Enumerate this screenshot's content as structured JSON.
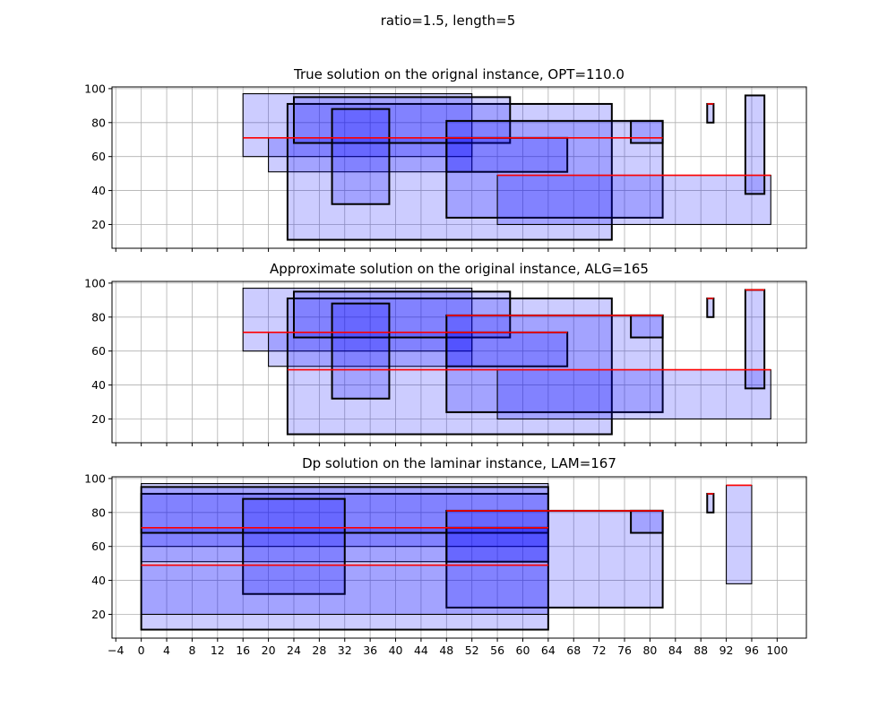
{
  "suptitle": "ratio=1.5, length=5",
  "colors": {
    "fill": "#0000ff",
    "edge": "#000000",
    "top_line": "#ff0000",
    "grid": "#b0b0b0"
  },
  "chart_data": [
    {
      "type": "rectangles",
      "title": "True solution on the orignal instance, OPT=110.0",
      "xlim": [
        -4.6,
        104.6
      ],
      "ylim": [
        6,
        101
      ],
      "xticks": [
        -4,
        0,
        4,
        8,
        12,
        16,
        20,
        24,
        28,
        32,
        36,
        40,
        44,
        48,
        52,
        56,
        60,
        64,
        68,
        72,
        76,
        80,
        84,
        88,
        92,
        96,
        100
      ],
      "yticks": [
        20,
        40,
        60,
        80,
        100
      ],
      "show_xtick_labels": false,
      "grid": true,
      "rects": [
        {
          "x0": 16,
          "x1": 52,
          "y0": 60,
          "y1": 97,
          "thick": false,
          "red_top": false
        },
        {
          "x0": 20,
          "x1": 52,
          "y0": 51,
          "y1": 71,
          "thick": false,
          "red_top": false
        },
        {
          "x0": 23,
          "x1": 74,
          "y0": 11,
          "y1": 91,
          "thick": true,
          "red_top": false
        },
        {
          "x0": 24,
          "x1": 58,
          "y0": 68,
          "y1": 95,
          "thick": true,
          "red_top": false
        },
        {
          "x0": 30,
          "x1": 39,
          "y0": 32,
          "y1": 88,
          "thick": true,
          "red_top": false
        },
        {
          "x0": 48,
          "x1": 67,
          "y0": 51,
          "y1": 71,
          "thick": true,
          "red_top": false
        },
        {
          "x0": 48,
          "x1": 82,
          "y0": 24,
          "y1": 81,
          "thick": true,
          "red_top": false
        },
        {
          "x0": 77,
          "x1": 82,
          "y0": 68,
          "y1": 81,
          "thick": true,
          "red_top": false
        },
        {
          "x0": 56,
          "x1": 99,
          "y0": 20,
          "y1": 49,
          "thick": false,
          "red_top": false
        },
        {
          "x0": 89,
          "x1": 90,
          "y0": 80,
          "y1": 91,
          "thick": true,
          "red_top": false
        },
        {
          "x0": 95,
          "x1": 98,
          "y0": 38,
          "y1": 96,
          "thick": true,
          "red_top": false
        }
      ],
      "red_lines": [
        {
          "x0": 16,
          "x1": 82,
          "y": 71
        },
        {
          "x0": 56,
          "x1": 99,
          "y": 49
        },
        {
          "x0": 89,
          "x1": 90,
          "y": 91
        }
      ]
    },
    {
      "type": "rectangles",
      "title": "Approximate solution on the original instance, ALG=165",
      "xlim": [
        -4.6,
        104.6
      ],
      "ylim": [
        6,
        101
      ],
      "xticks": [
        -4,
        0,
        4,
        8,
        12,
        16,
        20,
        24,
        28,
        32,
        36,
        40,
        44,
        48,
        52,
        56,
        60,
        64,
        68,
        72,
        76,
        80,
        84,
        88,
        92,
        96,
        100
      ],
      "yticks": [
        20,
        40,
        60,
        80,
        100
      ],
      "show_xtick_labels": false,
      "grid": true,
      "rects": [
        {
          "x0": 16,
          "x1": 52,
          "y0": 60,
          "y1": 97,
          "thick": false,
          "red_top": false
        },
        {
          "x0": 20,
          "x1": 52,
          "y0": 51,
          "y1": 71,
          "thick": false,
          "red_top": false
        },
        {
          "x0": 23,
          "x1": 74,
          "y0": 11,
          "y1": 91,
          "thick": true,
          "red_top": false
        },
        {
          "x0": 24,
          "x1": 58,
          "y0": 68,
          "y1": 95,
          "thick": true,
          "red_top": false
        },
        {
          "x0": 30,
          "x1": 39,
          "y0": 32,
          "y1": 88,
          "thick": true,
          "red_top": false
        },
        {
          "x0": 48,
          "x1": 67,
          "y0": 51,
          "y1": 71,
          "thick": true,
          "red_top": false
        },
        {
          "x0": 48,
          "x1": 82,
          "y0": 24,
          "y1": 81,
          "thick": true,
          "red_top": false
        },
        {
          "x0": 77,
          "x1": 82,
          "y0": 68,
          "y1": 81,
          "thick": true,
          "red_top": false
        },
        {
          "x0": 56,
          "x1": 99,
          "y0": 20,
          "y1": 49,
          "thick": false,
          "red_top": false
        },
        {
          "x0": 89,
          "x1": 90,
          "y0": 80,
          "y1": 91,
          "thick": true,
          "red_top": false
        },
        {
          "x0": 95,
          "x1": 98,
          "y0": 38,
          "y1": 96,
          "thick": true,
          "red_top": false
        }
      ],
      "red_lines": [
        {
          "x0": 16,
          "x1": 67,
          "y": 71
        },
        {
          "x0": 48,
          "x1": 82,
          "y": 81
        },
        {
          "x0": 23,
          "x1": 99,
          "y": 49
        },
        {
          "x0": 89,
          "x1": 90,
          "y": 91
        },
        {
          "x0": 95,
          "x1": 98,
          "y": 96
        }
      ]
    },
    {
      "type": "rectangles",
      "title": "Dp solution on the laminar instance, LAM=167",
      "xlim": [
        -4.6,
        104.6
      ],
      "ylim": [
        6,
        101
      ],
      "xticks": [
        -4,
        0,
        4,
        8,
        12,
        16,
        20,
        24,
        28,
        32,
        36,
        40,
        44,
        48,
        52,
        56,
        60,
        64,
        68,
        72,
        76,
        80,
        84,
        88,
        92,
        96,
        100
      ],
      "xtick_labels": [
        "−4",
        "0",
        "4",
        "8",
        "12",
        "16",
        "20",
        "24",
        "28",
        "32",
        "36",
        "40",
        "44",
        "48",
        "52",
        "56",
        "60",
        "64",
        "68",
        "72",
        "76",
        "80",
        "84",
        "88",
        "92",
        "96",
        "100"
      ],
      "yticks": [
        20,
        40,
        60,
        80,
        100
      ],
      "show_xtick_labels": true,
      "grid": true,
      "rects": [
        {
          "x0": 0,
          "x1": 64,
          "y0": 60,
          "y1": 97,
          "thick": false,
          "red_top": false
        },
        {
          "x0": 0,
          "x1": 64,
          "y0": 51,
          "y1": 71,
          "thick": false,
          "red_top": false
        },
        {
          "x0": 0,
          "x1": 64,
          "y0": 11,
          "y1": 91,
          "thick": true,
          "red_top": false
        },
        {
          "x0": 0,
          "x1": 64,
          "y0": 68,
          "y1": 95,
          "thick": true,
          "red_top": false
        },
        {
          "x0": 16,
          "x1": 32,
          "y0": 32,
          "y1": 88,
          "thick": true,
          "red_top": false
        },
        {
          "x0": 48,
          "x1": 64,
          "y0": 51,
          "y1": 71,
          "thick": true,
          "red_top": false
        },
        {
          "x0": 48,
          "x1": 82,
          "y0": 24,
          "y1": 81,
          "thick": true,
          "red_top": false
        },
        {
          "x0": 77,
          "x1": 82,
          "y0": 68,
          "y1": 81,
          "thick": true,
          "red_top": false
        },
        {
          "x0": 0,
          "x1": 64,
          "y0": 20,
          "y1": 49,
          "thick": false,
          "red_top": false
        },
        {
          "x0": 89,
          "x1": 90,
          "y0": 80,
          "y1": 91,
          "thick": true,
          "red_top": false
        },
        {
          "x0": 92,
          "x1": 96,
          "y0": 38,
          "y1": 96,
          "thick": false,
          "red_top": false
        }
      ],
      "red_lines": [
        {
          "x0": 0,
          "x1": 64,
          "y": 71
        },
        {
          "x0": 0,
          "x1": 64,
          "y": 49
        },
        {
          "x0": 48,
          "x1": 82,
          "y": 81
        },
        {
          "x0": 89,
          "x1": 90,
          "y": 91
        },
        {
          "x0": 92,
          "x1": 96,
          "y": 96
        }
      ]
    }
  ]
}
